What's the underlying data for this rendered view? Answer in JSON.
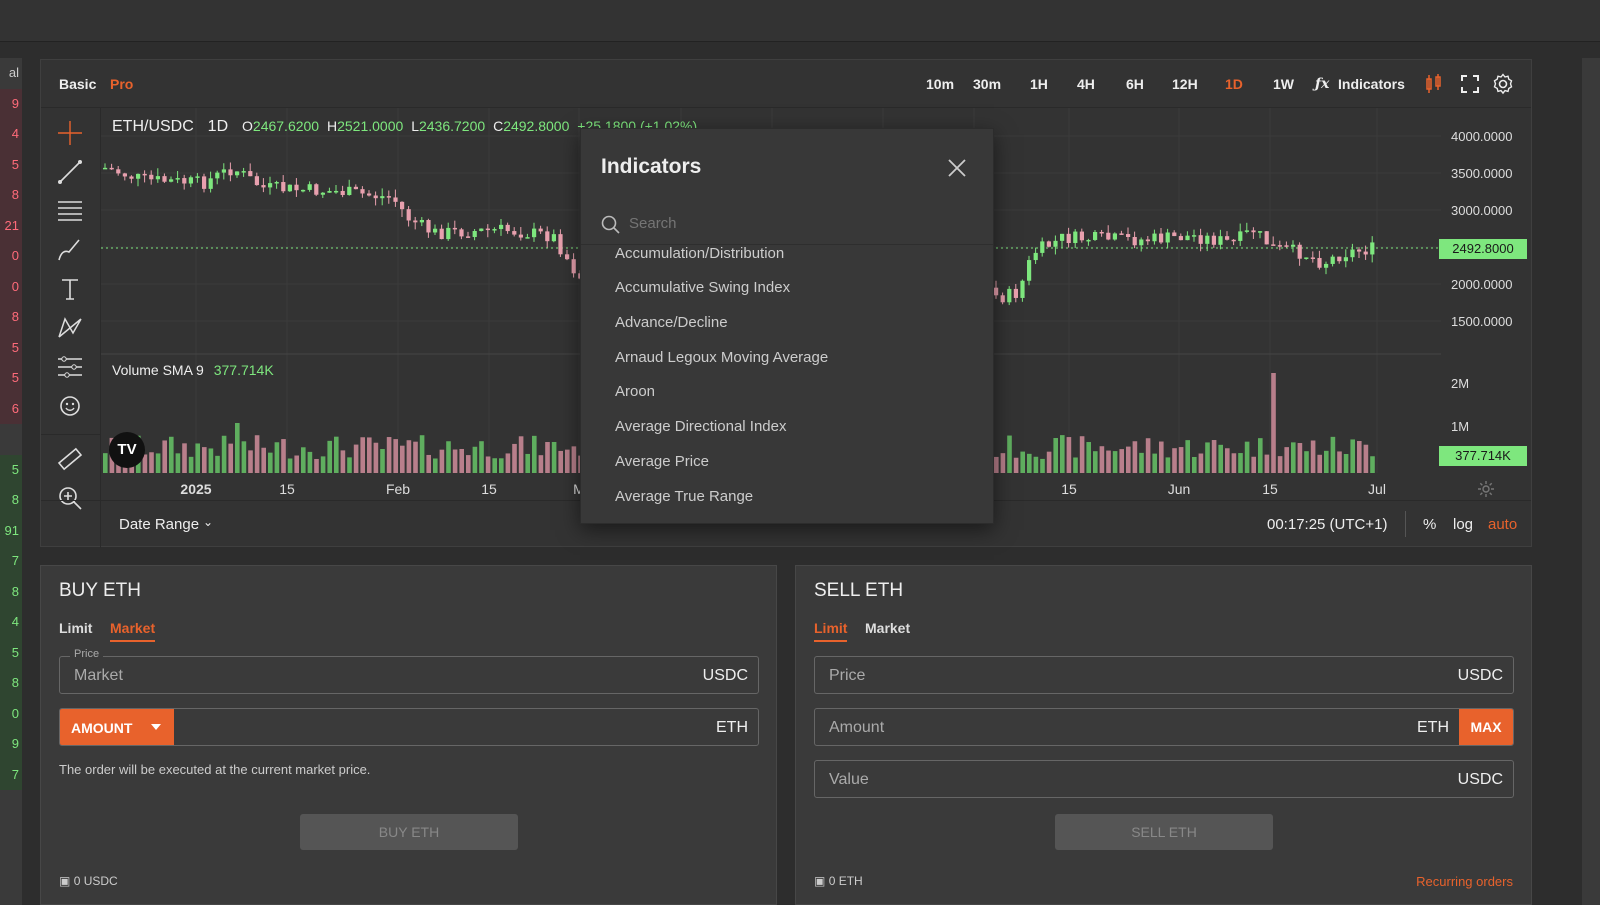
{
  "left_strip_numbers": [
    "9",
    "4",
    "5",
    "8",
    "21",
    "0",
    "0",
    "8",
    "5",
    "5",
    "6",
    "",
    "5",
    "8",
    "91",
    "7",
    "8",
    "4",
    "5",
    "8",
    "0",
    "9",
    "7"
  ],
  "left_strip_top_label": "al",
  "chart_toolbar": {
    "basic": "Basic",
    "pro": "Pro",
    "intervals": [
      "10m",
      "30m",
      "1H",
      "4H",
      "6H",
      "12H",
      "1D",
      "1W"
    ],
    "active_interval": "1D",
    "indicators": "Indicators"
  },
  "legend": {
    "symbol": "ETH/USDC",
    "interval": "1D",
    "o_label": "O",
    "o": "2467.6200",
    "h_label": "H",
    "h": "2521.0000",
    "l_label": "L",
    "l": "2436.7200",
    "c_label": "C",
    "c": "2492.8000",
    "change": "+25.1800 (+1.02%)",
    "volume_label": "Volume SMA 9",
    "volume_value": "377.714K"
  },
  "price_axis": [
    "4000.0000",
    "3500.0000",
    "3000.0000",
    "2000.0000",
    "1500.0000"
  ],
  "last_price": "2492.8000",
  "volume_axis": [
    "2M",
    "1M"
  ],
  "last_volume": "377.714K",
  "time_axis": {
    "labels": [
      "2025",
      "15",
      "Feb",
      "15",
      "M",
      "15",
      "Jun",
      "15",
      "Jul"
    ]
  },
  "bottom_bar": {
    "date_range": "Date Range",
    "clock": "00:17:25 (UTC+1)",
    "percent": "%",
    "log": "log",
    "auto": "auto"
  },
  "indicators_modal": {
    "title": "Indicators",
    "search_placeholder": "Search",
    "items": [
      "Accumulation/Distribution",
      "Accumulative Swing Index",
      "Advance/Decline",
      "Arnaud Legoux Moving Average",
      "Aroon",
      "Average Directional Index",
      "Average Price",
      "Average True Range"
    ]
  },
  "buy": {
    "title": "BUY ETH",
    "tabs": [
      "Limit",
      "Market"
    ],
    "active_tab": "Market",
    "price_legend": "Price",
    "price_placeholder": "Market",
    "price_unit": "USDC",
    "amount_dropdown": "AMOUNT",
    "amount_unit": "ETH",
    "note": "The order will be executed at the current market price.",
    "button": "BUY ETH",
    "balance": "0 USDC"
  },
  "sell": {
    "title": "SELL ETH",
    "tabs": [
      "Limit",
      "Market"
    ],
    "active_tab": "Limit",
    "price_placeholder": "Price",
    "price_unit": "USDC",
    "amount_placeholder": "Amount",
    "amount_unit": "ETH",
    "max": "MAX",
    "value_placeholder": "Value",
    "value_unit": "USDC",
    "button": "SELL ETH",
    "balance": "0 ETH",
    "recurring": "Recurring orders"
  },
  "colors": {
    "accent": "#e8622c",
    "up": "#7ee77e",
    "down": "#e8a0ae",
    "panel": "#333333"
  }
}
